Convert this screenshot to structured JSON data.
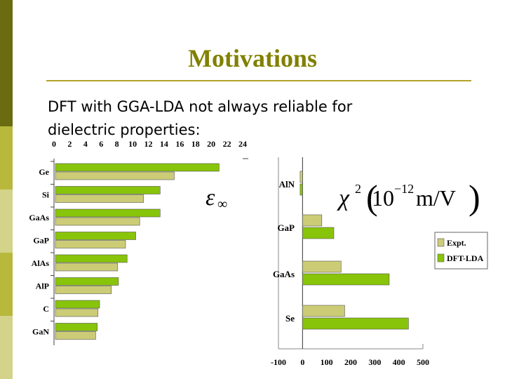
{
  "slide": {
    "title": "Motivations",
    "text_line1": "DFT with GGA-LDA  not always reliable for",
    "text_line2": "dielectric properties:",
    "sidebar_colors": [
      "#6b6b12",
      "#b8b83c",
      "#d3d38a",
      "#b8b83c",
      "#d3d38a"
    ]
  },
  "colors": {
    "expt": "#cccc77",
    "dft": "#88c40a"
  },
  "chart_data": [
    {
      "type": "bar",
      "orientation": "horizontal",
      "symbol": "ε∞",
      "categories": [
        "Ge",
        "Si",
        "GaAs",
        "GaP",
        "AlAs",
        "AlP",
        "C",
        "GaN"
      ],
      "x_ticks": [
        "0",
        "2",
        "4",
        "6",
        "8",
        "10",
        "12",
        "14",
        "16",
        "18",
        "20",
        "22",
        "24"
      ],
      "xlim": [
        0,
        24
      ],
      "series": [
        {
          "key": "dft",
          "values": [
            21.0,
            13.5,
            13.5,
            10.4,
            9.3,
            8.2,
            5.8,
            5.5
          ]
        },
        {
          "key": "expt",
          "values": [
            15.3,
            11.4,
            10.9,
            9.1,
            8.1,
            7.3,
            5.6,
            5.3
          ]
        }
      ]
    },
    {
      "type": "bar",
      "orientation": "horizontal",
      "symbol_chi": "χ",
      "symbol_sup": "2",
      "unit_mantissa": "10",
      "unit_exponent": "−12",
      "unit_suffix": " m/V",
      "categories": [
        "AlN",
        "GaP",
        "GaAs",
        "Se"
      ],
      "x_ticks": [
        "-100",
        "0",
        "100",
        "200",
        "300",
        "400",
        "500"
      ],
      "xlim": [
        -100,
        500
      ],
      "legend": {
        "position": "right",
        "entries": [
          "Expt.",
          "DFT-LDA"
        ]
      },
      "series": [
        {
          "key": "expt",
          "name": "Expt.",
          "values": [
            -10,
            80,
            160,
            175
          ]
        },
        {
          "key": "dft",
          "name": "DFT-LDA",
          "values": [
            -10,
            130,
            360,
            440
          ]
        }
      ]
    }
  ]
}
